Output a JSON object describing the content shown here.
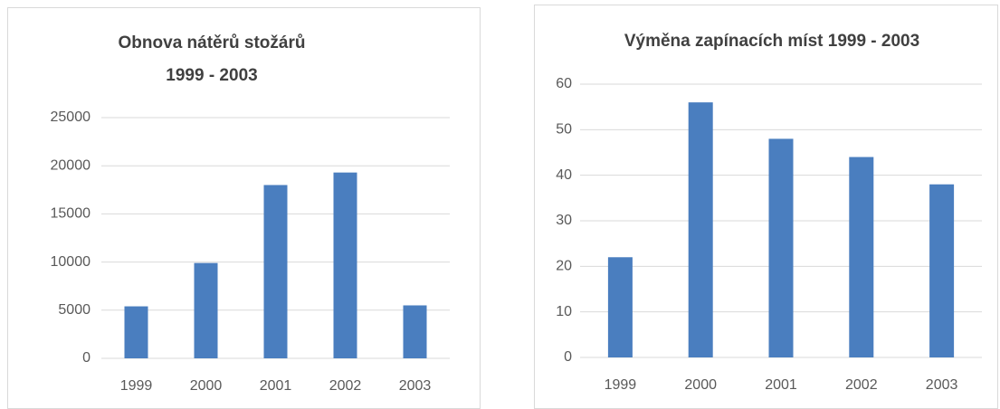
{
  "chart_data": [
    {
      "type": "bar",
      "title": [
        "Obnova nátěrů stožárů",
        "1999 - 2003"
      ],
      "categories": [
        "1999",
        "2000",
        "2001",
        "2002",
        "2003"
      ],
      "values": [
        5400,
        9900,
        18000,
        19300,
        5500
      ],
      "color": "#4a7ebf",
      "ylim": [
        0,
        25000
      ],
      "yticks": [
        0,
        5000,
        10000,
        15000,
        20000,
        25000
      ],
      "grid": true
    },
    {
      "type": "bar",
      "title": [
        "Výměna zapínacích míst 1999 - 2003"
      ],
      "categories": [
        "1999",
        "2000",
        "2001",
        "2002",
        "2003"
      ],
      "values": [
        22,
        56,
        48,
        44,
        38
      ],
      "color": "#4a7ebf",
      "ylim": [
        0,
        60
      ],
      "yticks": [
        0,
        10,
        20,
        30,
        40,
        50,
        60
      ],
      "grid": true
    }
  ]
}
